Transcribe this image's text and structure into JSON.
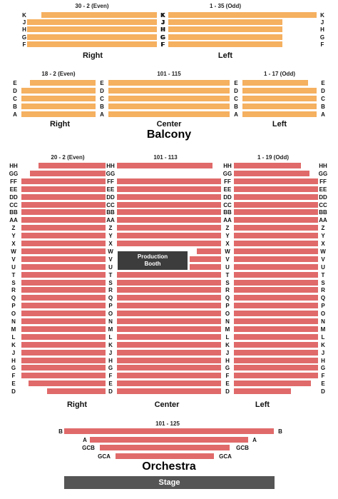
{
  "colors": {
    "balcony": "#f5b060",
    "orchestra": "#e06a6a",
    "booth": "#3c3c3c",
    "stage": "#555555"
  },
  "balcony_upper": {
    "right": {
      "header": "30 - 2 (Even)",
      "caption": "Right",
      "rows": [
        "K",
        "J",
        "H",
        "G",
        "F"
      ]
    },
    "left": {
      "header": "1 - 35 (Odd)",
      "caption": "Left",
      "rows": [
        "K",
        "J",
        "H",
        "G",
        "F"
      ]
    }
  },
  "balcony_lower": {
    "right": {
      "header": "18 - 2 (Even)",
      "caption": "Right",
      "rows": [
        "E",
        "D",
        "C",
        "B",
        "A"
      ]
    },
    "center": {
      "header": "101 - 115",
      "caption": "Center",
      "rows": [
        "E",
        "D",
        "C",
        "B",
        "A"
      ]
    },
    "left": {
      "header": "1 - 17 (Odd)",
      "caption": "Left",
      "rows": [
        "E",
        "D",
        "C",
        "B",
        "A"
      ]
    },
    "title": "Balcony"
  },
  "orchestra": {
    "right": {
      "header": "20 - 2 (Even)",
      "caption": "Right"
    },
    "center": {
      "header": "101 - 113",
      "caption": "Center"
    },
    "left": {
      "header": "1 - 19 (Odd)",
      "caption": "Left"
    },
    "rows": [
      "HH",
      "GG",
      "FF",
      "EE",
      "DD",
      "CC",
      "BB",
      "AA",
      "Z",
      "Y",
      "X",
      "W",
      "V",
      "U",
      "T",
      "S",
      "R",
      "Q",
      "P",
      "O",
      "N",
      "M",
      "L",
      "K",
      "J",
      "H",
      "G",
      "F",
      "E",
      "D"
    ],
    "booth_label": "Production Booth"
  },
  "front": {
    "header": "101 - 125",
    "rows": [
      "B",
      "A",
      "GCB",
      "GCA"
    ],
    "title": "Orchestra"
  },
  "stage_label": "Stage"
}
